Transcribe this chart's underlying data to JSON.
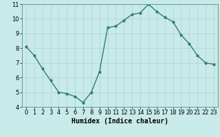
{
  "x": [
    0,
    1,
    2,
    3,
    4,
    5,
    6,
    7,
    8,
    9,
    10,
    11,
    12,
    13,
    14,
    15,
    16,
    17,
    18,
    19,
    20,
    21,
    22,
    23
  ],
  "y": [
    8.1,
    7.5,
    6.6,
    5.8,
    5.0,
    4.9,
    4.7,
    4.3,
    5.0,
    6.4,
    9.4,
    9.5,
    9.9,
    10.3,
    10.4,
    11.0,
    10.5,
    10.1,
    9.8,
    8.9,
    8.3,
    7.5,
    7.0,
    6.9
  ],
  "line_color": "#2e7d6e",
  "marker": ".",
  "marker_size": 4,
  "linewidth": 1.0,
  "background_color": "#c8eae8",
  "grid_color": "#b0d8d4",
  "xlabel": "Humidex (Indice chaleur)",
  "xlabel_fontsize": 7,
  "tick_fontsize": 6,
  "xlim": [
    -0.5,
    23.5
  ],
  "ylim": [
    4,
    11
  ],
  "yticks": [
    4,
    5,
    6,
    7,
    8,
    9,
    10,
    11
  ],
  "xticks": [
    0,
    1,
    2,
    3,
    4,
    5,
    6,
    7,
    8,
    9,
    10,
    11,
    12,
    13,
    14,
    15,
    16,
    17,
    18,
    19,
    20,
    21,
    22,
    23
  ]
}
